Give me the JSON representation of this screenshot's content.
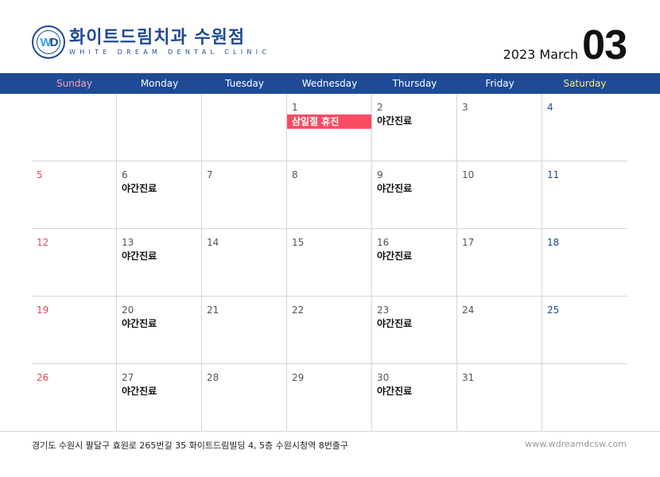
{
  "header": {
    "brand_name": "화이트드림치과 수원점",
    "brand_sub": "WHITE DREAM DENTAL CLINIC",
    "seal_text": "WD",
    "year_month": "2023 March",
    "month_num": "03"
  },
  "weekdays": [
    "Sunday",
    "Monday",
    "Tuesday",
    "Wednesday",
    "Thursday",
    "Friday",
    "Saturday"
  ],
  "colors": {
    "brand": "#1e4a96",
    "sunday": "#e8485e",
    "holiday_bg": "#fb4b63",
    "saturday_header": "#f7e97a"
  },
  "cells": [
    {
      "d": "",
      "e": ""
    },
    {
      "d": "",
      "e": ""
    },
    {
      "d": "",
      "e": ""
    },
    {
      "d": "1",
      "e": "삼일절 휴진",
      "h": true
    },
    {
      "d": "2",
      "e": "야간진료"
    },
    {
      "d": "3",
      "e": ""
    },
    {
      "d": "4",
      "e": ""
    },
    {
      "d": "5",
      "e": ""
    },
    {
      "d": "6",
      "e": "야간진료"
    },
    {
      "d": "7",
      "e": ""
    },
    {
      "d": "8",
      "e": ""
    },
    {
      "d": "9",
      "e": "야간진료"
    },
    {
      "d": "10",
      "e": ""
    },
    {
      "d": "11",
      "e": ""
    },
    {
      "d": "12",
      "e": ""
    },
    {
      "d": "13",
      "e": "야간진료"
    },
    {
      "d": "14",
      "e": ""
    },
    {
      "d": "15",
      "e": ""
    },
    {
      "d": "16",
      "e": "야간진료"
    },
    {
      "d": "17",
      "e": ""
    },
    {
      "d": "18",
      "e": ""
    },
    {
      "d": "19",
      "e": ""
    },
    {
      "d": "20",
      "e": "야간진료"
    },
    {
      "d": "21",
      "e": ""
    },
    {
      "d": "22",
      "e": ""
    },
    {
      "d": "23",
      "e": "야간진료"
    },
    {
      "d": "24",
      "e": ""
    },
    {
      "d": "25",
      "e": ""
    },
    {
      "d": "26",
      "e": ""
    },
    {
      "d": "27",
      "e": "야간진료"
    },
    {
      "d": "28",
      "e": ""
    },
    {
      "d": "29",
      "e": ""
    },
    {
      "d": "30",
      "e": "야간진료"
    },
    {
      "d": "31",
      "e": ""
    },
    {
      "d": "",
      "e": ""
    }
  ],
  "footer": {
    "address": "경기도 수원시 팔달구 효원로 265번길 35 화이트드림빌딩 4, 5층 수원시청역 8번출구",
    "url": "www.wdreamdcsw.com"
  }
}
